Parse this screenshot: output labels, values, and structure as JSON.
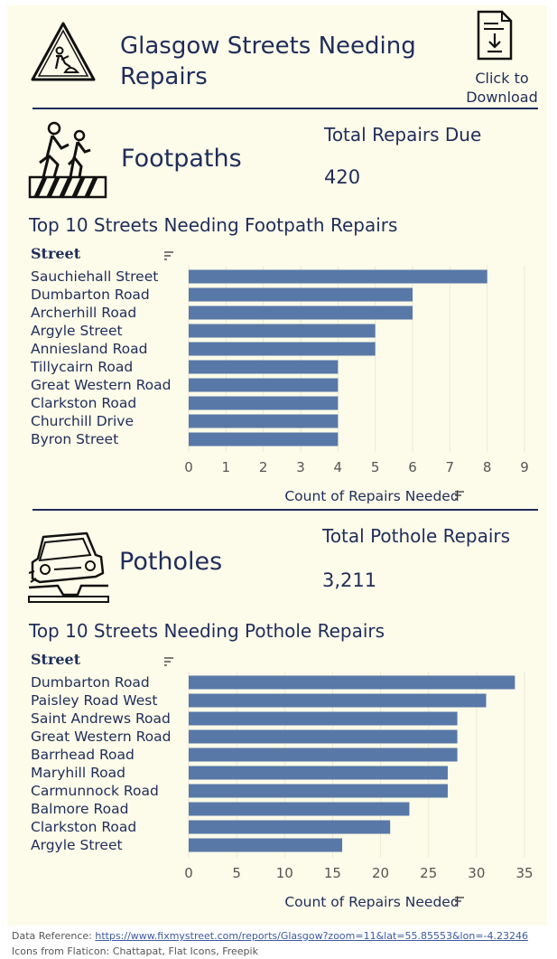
{
  "header": {
    "title": "Glasgow Streets Needing Repairs",
    "download_label": "Click to Download",
    "logo_icon": "roadworks-sign-icon",
    "download_icon": "document-download-icon"
  },
  "footpaths": {
    "section_name": "Footpaths",
    "icon": "pedestrians-crossing-icon",
    "kpi_label": "Total Repairs Due",
    "kpi_value": "420",
    "chart_title": "Top 10 Streets Needing Footpath Repairs"
  },
  "potholes": {
    "section_name": "Potholes",
    "icon": "car-pothole-icon",
    "kpi_label": "Total Pothole Repairs",
    "kpi_value": "3,211",
    "chart_title": "Top 10 Streets Needing Pothole Repairs"
  },
  "chart_data": [
    {
      "type": "bar",
      "orientation": "horizontal",
      "row_header": "Street",
      "xlabel": "Count of Repairs Needed",
      "xlim": [
        0,
        9
      ],
      "xticks": [
        0,
        1,
        2,
        3,
        4,
        5,
        6,
        7,
        8,
        9
      ],
      "grid": true,
      "bar_color": "#5878a8",
      "categories": [
        "Sauchiehall Street",
        "Dumbarton Road",
        "Archerhill Road",
        "Argyle Street",
        "Anniesland Road",
        "Tillycairn Road",
        "Great Western Road",
        "Clarkston Road",
        "Churchill Drive",
        "Byron Street"
      ],
      "values": [
        8,
        6,
        6,
        5,
        5,
        4,
        4,
        4,
        4,
        4
      ]
    },
    {
      "type": "bar",
      "orientation": "horizontal",
      "row_header": "Street",
      "xlabel": "Count of Repairs Needed",
      "xlim": [
        0,
        35
      ],
      "xticks": [
        0,
        5,
        10,
        15,
        20,
        25,
        30,
        35
      ],
      "grid": true,
      "bar_color": "#5878a8",
      "categories": [
        "Dumbarton Road",
        "Paisley Road West",
        "Saint Andrews Road",
        "Great Western Road",
        "Barrhead Road",
        "Maryhill Road",
        "Carmunnock Road",
        "Balmore Road",
        "Clarkston Road",
        "Argyle Street"
      ],
      "values": [
        34,
        31,
        28,
        28,
        28,
        27,
        27,
        23,
        21,
        16
      ]
    }
  ],
  "footer": {
    "reference_label": "Data Reference:",
    "reference_url": "https://www.fixmystreet.com/reports/Glasgow?zoom=11&lat=55.85553&lon=-4.23246",
    "credits": "Icons from Flaticon: Chattapat, Flat Icons, Freepik"
  }
}
